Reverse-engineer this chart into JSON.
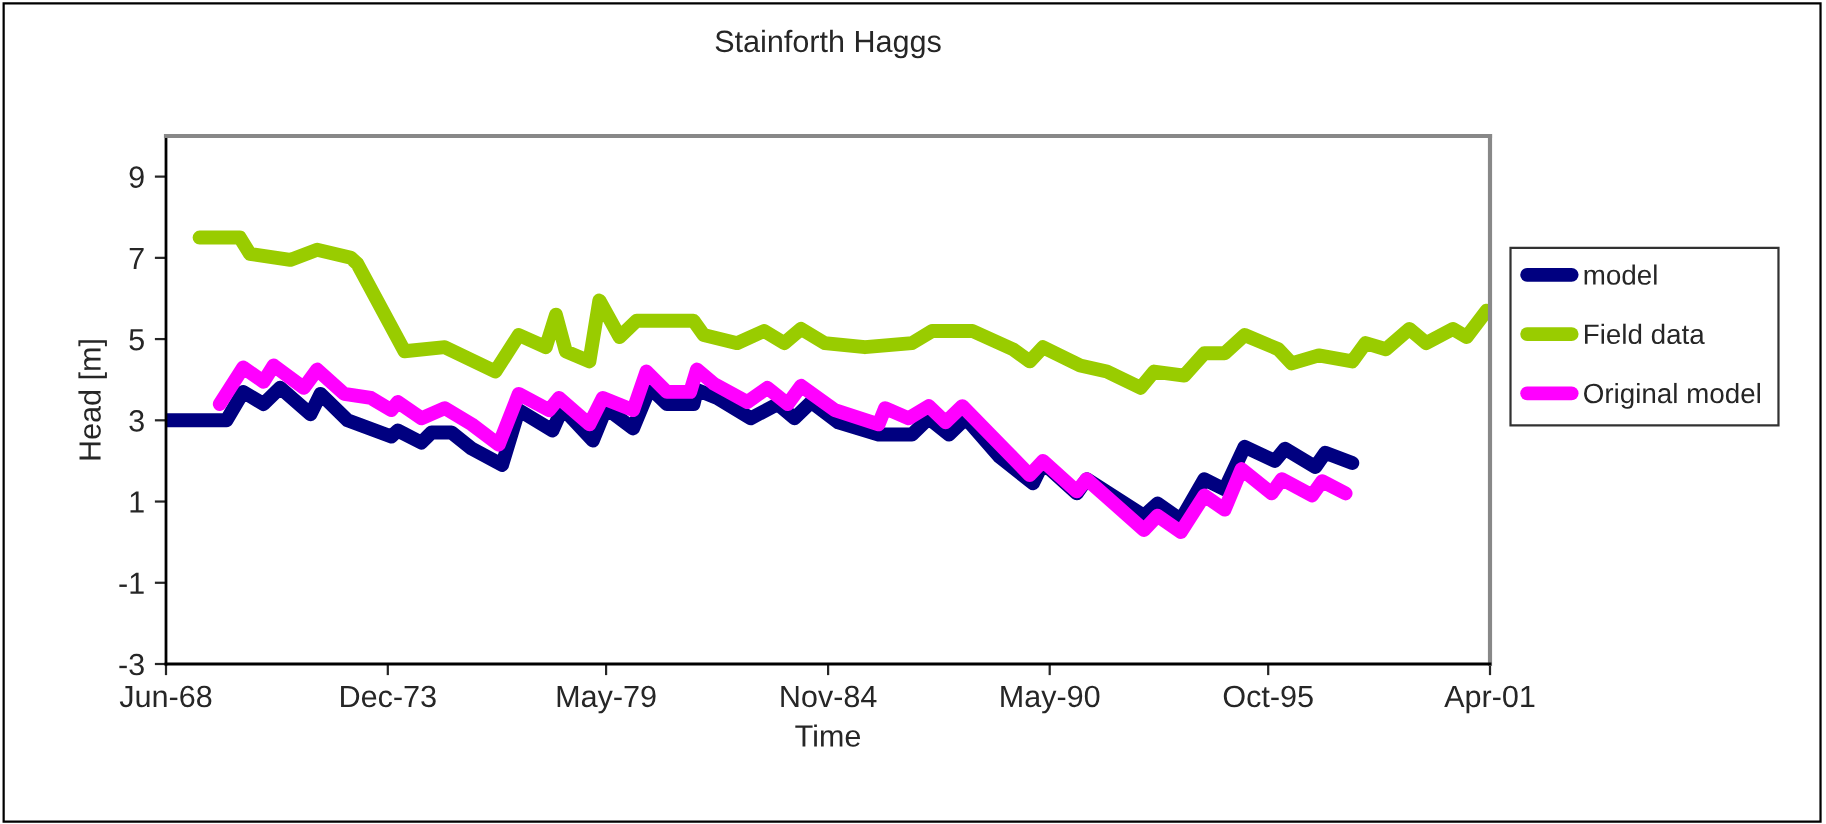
{
  "chart_data": {
    "type": "line",
    "title": "Stainforth Haggs",
    "xlabel": "Time",
    "ylabel": "Head [m]",
    "xlim": [
      "1968-06",
      "2001-04"
    ],
    "xticks": [
      {
        "value": "1968-06",
        "label": "Jun-68"
      },
      {
        "value": "1973-12",
        "label": "Dec-73"
      },
      {
        "value": "1979-05",
        "label": "May-79"
      },
      {
        "value": "1984-11",
        "label": "Nov-84"
      },
      {
        "value": "1990-05",
        "label": "May-90"
      },
      {
        "value": "1995-10",
        "label": "Oct-95"
      },
      {
        "value": "2001-04",
        "label": "Apr-01"
      }
    ],
    "ylim": [
      -3,
      10
    ],
    "yticks": [
      -3,
      -1,
      1,
      3,
      5,
      7,
      9
    ],
    "grid": false,
    "legend": "right",
    "marker": "none",
    "line_style": "solid",
    "series": [
      {
        "name": "model",
        "color": "#000080",
        "x": [
          "1968-06",
          "1969-12",
          "1970-05",
          "1970-11",
          "1971-04",
          "1972-01",
          "1972-04",
          "1972-12",
          "1974-01",
          "1974-03",
          "1974-10",
          "1975-01",
          "1975-07",
          "1976-01",
          "1976-10",
          "1977-03",
          "1978-01",
          "1978-04",
          "1979-01",
          "1979-05",
          "1980-01",
          "1980-06",
          "1980-11",
          "1981-07",
          "1981-08",
          "1982-02",
          "1982-12",
          "1983-08",
          "1984-01",
          "1984-06",
          "1985-02",
          "1986-02",
          "1986-12",
          "1987-05",
          "1987-11",
          "1988-04",
          "1989-02",
          "1989-12",
          "1990-03",
          "1991-01",
          "1991-04",
          "1992-09",
          "1993-01",
          "1993-08",
          "1994-03",
          "1994-09",
          "1995-03",
          "1995-12",
          "1996-03",
          "1996-12",
          "1997-03",
          "1997-11"
        ],
        "values": [
          3.0,
          3.0,
          3.7,
          3.4,
          3.8,
          3.15,
          3.65,
          3.0,
          2.6,
          2.75,
          2.45,
          2.7,
          2.7,
          2.3,
          1.9,
          3.25,
          2.75,
          3.3,
          2.5,
          3.3,
          2.8,
          3.8,
          3.4,
          3.4,
          3.75,
          3.55,
          3.05,
          3.4,
          3.05,
          3.45,
          2.95,
          2.65,
          2.65,
          3.05,
          2.65,
          3.05,
          2.1,
          1.45,
          1.95,
          1.2,
          1.55,
          0.65,
          0.95,
          0.55,
          1.55,
          1.3,
          2.35,
          2.0,
          2.3,
          1.85,
          2.2,
          1.95
        ]
      },
      {
        "name": "Field data",
        "color": "#99cc00",
        "x": [
          "1969-04",
          "1970-04",
          "1970-07",
          "1971-07",
          "1972-03",
          "1973-01",
          "1973-03",
          "1974-05",
          "1975-05",
          "1976-08",
          "1977-03",
          "1977-11",
          "1978-02",
          "1978-05",
          "1978-12",
          "1979-03",
          "1979-09",
          "1980-02",
          "1981-07",
          "1981-10",
          "1982-08",
          "1983-04",
          "1983-10",
          "1984-03",
          "1984-10",
          "1985-10",
          "1986-12",
          "1987-06",
          "1988-06",
          "1989-06",
          "1989-11",
          "1990-03",
          "1991-02",
          "1991-10",
          "1992-08",
          "1992-12",
          "1993-09",
          "1994-03",
          "1994-09",
          "1995-03",
          "1996-01",
          "1996-05",
          "1997-01",
          "1997-11",
          "1998-03",
          "1998-09",
          "1999-04",
          "1999-09",
          "2000-05",
          "2000-09",
          "2001-03"
        ],
        "values": [
          7.5,
          7.5,
          7.1,
          6.95,
          7.2,
          7.0,
          6.85,
          4.7,
          4.8,
          4.2,
          5.1,
          4.8,
          5.6,
          4.7,
          4.45,
          5.95,
          5.05,
          5.45,
          5.45,
          5.1,
          4.9,
          5.2,
          4.9,
          5.25,
          4.9,
          4.8,
          4.9,
          5.2,
          5.2,
          4.75,
          4.45,
          4.8,
          4.35,
          4.2,
          3.8,
          4.2,
          4.1,
          4.65,
          4.65,
          5.1,
          4.75,
          4.4,
          4.6,
          4.45,
          4.9,
          4.75,
          5.25,
          4.9,
          5.25,
          5.05,
          5.7
        ]
      },
      {
        "name": "Original model",
        "color": "#ff00ff",
        "x": [
          "1969-10",
          "1970-05",
          "1970-11",
          "1971-02",
          "1971-11",
          "1972-03",
          "1972-11",
          "1973-07",
          "1974-01",
          "1974-03",
          "1974-10",
          "1975-05",
          "1976-01",
          "1976-09",
          "1977-03",
          "1977-12",
          "1978-03",
          "1978-12",
          "1979-04",
          "1980-01",
          "1980-05",
          "1980-11",
          "1981-06",
          "1981-08",
          "1982-01",
          "1982-11",
          "1983-05",
          "1983-11",
          "1984-03",
          "1985-01",
          "1986-02",
          "1986-04",
          "1986-11",
          "1987-05",
          "1987-10",
          "1988-03",
          "1989-04",
          "1989-11",
          "1990-03",
          "1991-01",
          "1991-04",
          "1992-09",
          "1993-01",
          "1993-08",
          "1994-03",
          "1994-09",
          "1995-02",
          "1995-11",
          "1996-02",
          "1996-11",
          "1997-02",
          "1997-09"
        ],
        "values": [
          3.4,
          4.3,
          3.95,
          4.35,
          3.8,
          4.25,
          3.65,
          3.55,
          3.25,
          3.45,
          3.05,
          3.3,
          2.9,
          2.4,
          3.65,
          3.25,
          3.55,
          2.9,
          3.55,
          3.25,
          4.2,
          3.7,
          3.7,
          4.25,
          3.9,
          3.45,
          3.8,
          3.4,
          3.85,
          3.25,
          2.9,
          3.3,
          3.05,
          3.35,
          2.95,
          3.35,
          2.25,
          1.65,
          2.0,
          1.25,
          1.55,
          0.3,
          0.65,
          0.25,
          1.15,
          0.8,
          1.8,
          1.2,
          1.55,
          1.15,
          1.5,
          1.2
        ]
      }
    ]
  }
}
